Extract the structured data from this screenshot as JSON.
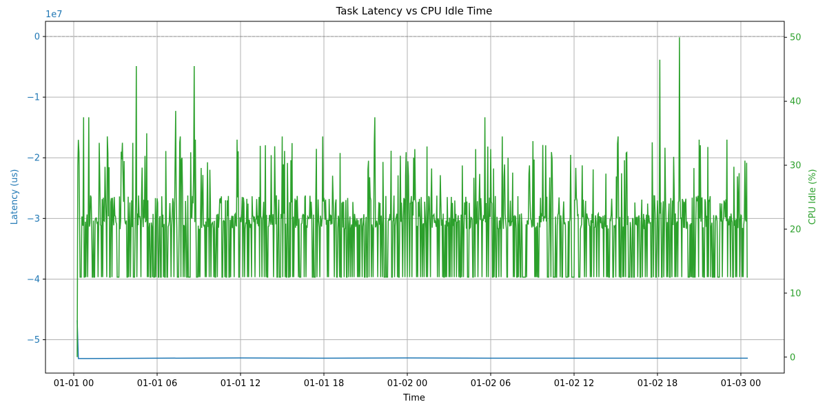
{
  "chart_data": {
    "type": "line",
    "title": "Task Latency vs CPU Idle Time",
    "xlabel": "Time",
    "ylabel_left": "Latency (us)",
    "ylabel_right": "CPU Idle (%)",
    "left_offset_label": "1e7",
    "x_range": [
      "2024-01-01 00:00",
      "2024-01-03 00:00"
    ],
    "x_tick_labels": [
      "01-01 00",
      "01-01 06",
      "01-01 12",
      "01-01 18",
      "01-02 00",
      "01-02 06",
      "01-02 12",
      "01-02 18",
      "01-03 00"
    ],
    "left_ylim": [
      -55500000,
      2500000
    ],
    "left_ticks": [
      0,
      -10000000,
      -20000000,
      -30000000,
      -40000000,
      -50000000
    ],
    "left_tick_labels": [
      "0",
      "−1",
      "−2",
      "−3",
      "−4",
      "−5"
    ],
    "right_ylim": [
      -2.5,
      52.5
    ],
    "right_ticks": [
      0,
      10,
      20,
      30,
      40,
      50
    ],
    "right_tick_labels": [
      "0",
      "10",
      "20",
      "30",
      "40",
      "50"
    ],
    "grid": true,
    "reference_line": {
      "axis": "left",
      "y": 0,
      "style": "dashed",
      "color": "#888888"
    },
    "series": [
      {
        "axis": "left",
        "color": "#1f77b4",
        "points": [
          [
            "2024-01-01 00:15",
            -46800000
          ],
          [
            "2024-01-01 00:20",
            -53100000
          ],
          [
            "2024-01-01 06:00",
            -53050000
          ],
          [
            "2024-01-01 12:00",
            -53000000
          ],
          [
            "2024-01-01 18:00",
            -53050000
          ],
          [
            "2024-01-02 00:00",
            -53000000
          ],
          [
            "2024-01-02 06:00",
            -53050000
          ],
          [
            "2024-01-02 12:00",
            -53050000
          ],
          [
            "2024-01-02 18:00",
            -53050000
          ],
          [
            "2024-01-03 00:30",
            -53050000
          ]
        ]
      },
      {
        "axis": "right",
        "color": "#2ca02c",
        "start": "2024-01-01 00:15",
        "end": "2024-01-03 00:30",
        "baseline": 12.5,
        "start_value": 0,
        "spikes": [
          [
            "2024-01-01 00:42",
            37.5
          ],
          [
            "2024-01-01 01:05",
            37.5
          ],
          [
            "2024-01-01 01:50",
            33.5
          ],
          [
            "2024-01-01 02:25",
            34.5
          ],
          [
            "2024-01-01 04:15",
            33.5
          ],
          [
            "2024-01-01 04:30",
            45.5
          ],
          [
            "2024-01-01 05:15",
            35
          ],
          [
            "2024-01-01 07:20",
            38.5
          ],
          [
            "2024-01-01 07:40",
            34.5
          ],
          [
            "2024-01-01 08:40",
            45.5
          ],
          [
            "2024-01-01 08:45",
            34
          ],
          [
            "2024-01-01 11:45",
            34
          ],
          [
            "2024-01-01 15:00",
            34.5
          ],
          [
            "2024-01-01 17:55",
            34.5
          ],
          [
            "2024-01-01 21:40",
            37.5
          ],
          [
            "2024-01-02 05:35",
            37.5
          ],
          [
            "2024-01-02 06:50",
            34.5
          ],
          [
            "2024-01-02 15:10",
            34.5
          ],
          [
            "2024-01-02 18:10",
            46.5
          ],
          [
            "2024-01-02 19:35",
            50
          ],
          [
            "2024-01-02 21:00",
            34
          ],
          [
            "2024-01-02 23:00",
            34
          ]
        ]
      }
    ]
  }
}
